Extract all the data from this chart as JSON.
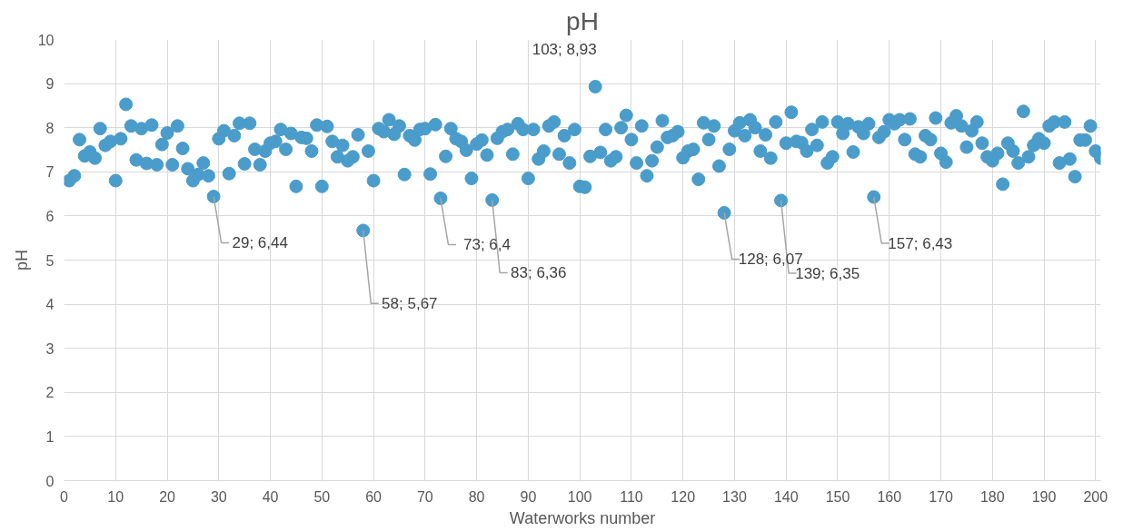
{
  "chart_data": {
    "type": "scatter",
    "title": "pH",
    "xlabel": "Waterworks number",
    "ylabel": "pH",
    "x": [
      1,
      2,
      3,
      4,
      5,
      6,
      7,
      8,
      9,
      10,
      11,
      12,
      13,
      14,
      15,
      16,
      17,
      18,
      19,
      20,
      21,
      22,
      23,
      24,
      25,
      26,
      27,
      28,
      29,
      30,
      31,
      32,
      33,
      34,
      35,
      36,
      37,
      38,
      39,
      40,
      41,
      42,
      43,
      44,
      45,
      46,
      47,
      48,
      49,
      50,
      51,
      52,
      53,
      54,
      55,
      56,
      57,
      58,
      59,
      60,
      61,
      62,
      63,
      64,
      65,
      66,
      67,
      68,
      69,
      70,
      71,
      72,
      73,
      74,
      75,
      76,
      77,
      78,
      79,
      80,
      81,
      82,
      83,
      84,
      85,
      86,
      87,
      88,
      89,
      90,
      91,
      92,
      93,
      94,
      95,
      96,
      97,
      98,
      99,
      100,
      101,
      102,
      103,
      104,
      105,
      106,
      107,
      108,
      109,
      110,
      111,
      112,
      113,
      114,
      115,
      116,
      117,
      118,
      119,
      120,
      121,
      122,
      123,
      124,
      125,
      126,
      127,
      128,
      129,
      130,
      131,
      132,
      133,
      134,
      135,
      136,
      137,
      138,
      139,
      140,
      141,
      142,
      143,
      144,
      145,
      146,
      147,
      148,
      149,
      150,
      151,
      152,
      153,
      154,
      155,
      156,
      157,
      158,
      159,
      160,
      161,
      162,
      163,
      164,
      165,
      166,
      167,
      168,
      169,
      170,
      171,
      172,
      173,
      174,
      175,
      176,
      177,
      178,
      179,
      180,
      181,
      182,
      183,
      184,
      185,
      186,
      187,
      188,
      189,
      190,
      191,
      192,
      193,
      194,
      195,
      196,
      197,
      198,
      199,
      200,
      201
    ],
    "series": [
      {
        "color": "#4a9cca",
        "values": [
          6.8,
          6.91,
          7.73,
          7.36,
          7.45,
          7.31,
          7.98,
          7.6,
          7.69,
          6.8,
          7.75,
          8.53,
          8.04,
          7.27,
          7.98,
          7.19,
          8.06,
          7.16,
          7.62,
          7.88,
          7.16,
          8.04,
          7.53,
          7.07,
          6.8,
          6.94,
          7.2,
          6.91,
          6.44,
          7.75,
          7.93,
          6.96,
          7.82,
          8.1,
          7.18,
          8.1,
          7.51,
          7.16,
          7.47,
          7.65,
          7.69,
          7.96,
          7.51,
          7.87,
          6.67,
          7.78,
          7.76,
          7.47,
          8.06,
          6.67,
          8.03,
          7.69,
          7.34,
          7.6,
          7.25,
          7.34,
          7.84,
          5.67,
          7.47,
          6.8,
          7.98,
          7.91,
          8.18,
          7.85,
          8.04,
          6.94,
          7.82,
          7.72,
          7.96,
          7.98,
          6.95,
          8.07,
          6.4,
          7.35,
          7.98,
          7.75,
          7.69,
          7.49,
          6.85,
          7.63,
          7.72,
          7.38,
          6.36,
          7.76,
          7.91,
          7.96,
          7.4,
          8.09,
          7.96,
          6.85,
          7.96,
          7.29,
          7.47,
          8.04,
          8.13,
          7.4,
          7.82,
          7.2,
          7.96,
          6.67,
          6.65,
          7.35,
          8.93,
          7.44,
          7.96,
          7.25,
          7.34,
          8.0,
          8.28,
          7.73,
          7.2,
          8.04,
          6.91,
          7.25,
          7.56,
          8.16,
          7.78,
          7.82,
          7.91,
          7.32,
          7.47,
          7.51,
          6.83,
          8.11,
          7.73,
          8.04,
          7.13,
          6.07,
          7.51,
          7.93,
          8.11,
          7.82,
          8.18,
          8.0,
          7.47,
          7.84,
          7.31,
          8.13,
          6.35,
          7.65,
          8.35,
          7.69,
          7.66,
          7.47,
          7.96,
          7.6,
          8.13,
          7.2,
          7.34,
          8.13,
          7.87,
          8.09,
          7.45,
          8.02,
          7.87,
          8.09,
          6.43,
          7.78,
          7.91,
          8.18,
          8.09,
          8.18,
          7.73,
          8.2,
          7.4,
          7.34,
          7.82,
          7.73,
          8.22,
          7.42,
          7.22,
          8.11,
          8.27,
          8.04,
          7.56,
          7.93,
          8.13,
          7.65,
          7.34,
          7.25,
          7.42,
          6.72,
          7.65,
          7.47,
          7.2,
          8.37,
          7.34,
          7.6,
          7.75,
          7.65,
          8.04,
          8.13,
          7.2,
          8.13,
          7.29,
          6.89,
          7.72,
          7.72,
          8.04,
          7.47,
          7.31
        ]
      }
    ],
    "xlim": [
      0,
      201
    ],
    "ylim": [
      0,
      10
    ],
    "xticks": [
      0,
      10,
      20,
      30,
      40,
      50,
      60,
      70,
      80,
      90,
      100,
      110,
      120,
      130,
      140,
      150,
      160,
      170,
      180,
      190,
      200
    ],
    "yticks": [
      0,
      1,
      2,
      3,
      4,
      5,
      6,
      7,
      8,
      9,
      10
    ],
    "grid": true,
    "marker": "circle",
    "annotations": [
      {
        "text": "29; 6,44",
        "x": 29,
        "y": 6.44
      },
      {
        "text": "58; 5,67",
        "x": 58,
        "y": 5.67
      },
      {
        "text": "73; 6,4",
        "x": 73,
        "y": 6.4
      },
      {
        "text": "83; 6,36",
        "x": 83,
        "y": 6.36
      },
      {
        "text": "103; 8,93",
        "x": 103,
        "y": 8.93
      },
      {
        "text": "128; 6,07",
        "x": 128,
        "y": 6.07
      },
      {
        "text": "139; 6,35",
        "x": 139,
        "y": 6.35
      },
      {
        "text": "157; 6,43",
        "x": 157,
        "y": 6.43
      }
    ]
  }
}
